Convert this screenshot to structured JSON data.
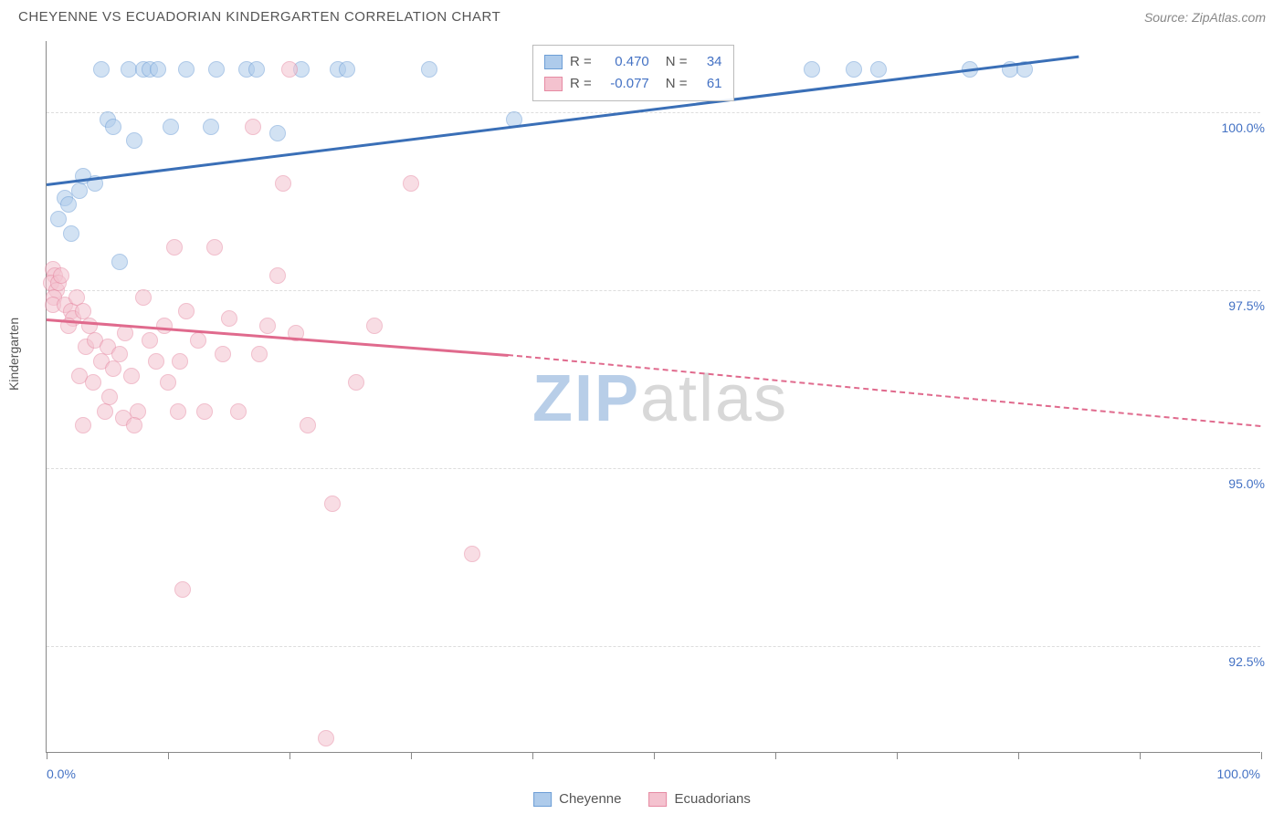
{
  "title": "CHEYENNE VS ECUADORIAN KINDERGARTEN CORRELATION CHART",
  "source": "Source: ZipAtlas.com",
  "yaxis_title": "Kindergarten",
  "watermark_zip": "ZIP",
  "watermark_atlas": "atlas",
  "chart": {
    "type": "scatter",
    "xlim": [
      0,
      100
    ],
    "ylim": [
      91.0,
      101.0
    ],
    "x_label_min": "0.0%",
    "x_label_max": "100.0%",
    "y_gridlines": [
      {
        "value": 100.0,
        "label": "100.0%"
      },
      {
        "value": 97.5,
        "label": "97.5%"
      },
      {
        "value": 95.0,
        "label": "95.0%"
      },
      {
        "value": 92.5,
        "label": "92.5%"
      }
    ],
    "x_ticks": [
      0,
      10,
      20,
      30,
      40,
      50,
      60,
      70,
      80,
      90,
      100
    ],
    "background_color": "#ffffff",
    "grid_color": "#dddddd",
    "axis_color": "#888888",
    "point_radius": 9,
    "point_opacity": 0.55,
    "series": [
      {
        "name": "Cheyenne",
        "fill": "#aecbeb",
        "stroke": "#6d9ed6",
        "trend_color": "#3a6fb7",
        "r": "0.470",
        "n": "34",
        "trend": {
          "x1": 0,
          "y1": 99.0,
          "x2": 85,
          "y2": 100.8
        },
        "points": [
          {
            "x": 1.5,
            "y": 98.8
          },
          {
            "x": 1.8,
            "y": 98.7
          },
          {
            "x": 2.7,
            "y": 98.9
          },
          {
            "x": 3.0,
            "y": 99.1
          },
          {
            "x": 1.0,
            "y": 98.5
          },
          {
            "x": 2.0,
            "y": 98.3
          },
          {
            "x": 4.0,
            "y": 99.0
          },
          {
            "x": 4.5,
            "y": 100.6
          },
          {
            "x": 5.0,
            "y": 99.9
          },
          {
            "x": 5.5,
            "y": 99.8
          },
          {
            "x": 6.8,
            "y": 100.6
          },
          {
            "x": 7.2,
            "y": 99.6
          },
          {
            "x": 8.0,
            "y": 100.6
          },
          {
            "x": 8.5,
            "y": 100.6
          },
          {
            "x": 9.2,
            "y": 100.6
          },
          {
            "x": 10.2,
            "y": 99.8
          },
          {
            "x": 11.5,
            "y": 100.6
          },
          {
            "x": 13.5,
            "y": 99.8
          },
          {
            "x": 14.0,
            "y": 100.6
          },
          {
            "x": 16.5,
            "y": 100.6
          },
          {
            "x": 17.3,
            "y": 100.6
          },
          {
            "x": 19.0,
            "y": 99.7
          },
          {
            "x": 21.0,
            "y": 100.6
          },
          {
            "x": 24.0,
            "y": 100.6
          },
          {
            "x": 24.7,
            "y": 100.6
          },
          {
            "x": 31.5,
            "y": 100.6
          },
          {
            "x": 38.5,
            "y": 99.9
          },
          {
            "x": 63.0,
            "y": 100.6
          },
          {
            "x": 66.5,
            "y": 100.6
          },
          {
            "x": 68.5,
            "y": 100.6
          },
          {
            "x": 76.0,
            "y": 100.6
          },
          {
            "x": 79.3,
            "y": 100.6
          },
          {
            "x": 80.5,
            "y": 100.6
          },
          {
            "x": 6.0,
            "y": 97.9
          }
        ]
      },
      {
        "name": "Ecuadorians",
        "fill": "#f4c2cf",
        "stroke": "#e68aa3",
        "trend_color": "#e06a8d",
        "r": "-0.077",
        "n": "61",
        "trend_solid": {
          "x1": 0,
          "y1": 97.1,
          "x2": 38,
          "y2": 96.6
        },
        "trend_dash": {
          "x1": 38,
          "y1": 96.6,
          "x2": 100,
          "y2": 95.6
        },
        "points": [
          {
            "x": 0.5,
            "y": 97.8
          },
          {
            "x": 0.7,
            "y": 97.7
          },
          {
            "x": 0.4,
            "y": 97.6
          },
          {
            "x": 0.8,
            "y": 97.5
          },
          {
            "x": 0.6,
            "y": 97.4
          },
          {
            "x": 1.0,
            "y": 97.6
          },
          {
            "x": 1.2,
            "y": 97.7
          },
          {
            "x": 0.5,
            "y": 97.3
          },
          {
            "x": 1.5,
            "y": 97.3
          },
          {
            "x": 2.0,
            "y": 97.2
          },
          {
            "x": 2.5,
            "y": 97.4
          },
          {
            "x": 2.2,
            "y": 97.1
          },
          {
            "x": 1.8,
            "y": 97.0
          },
          {
            "x": 3.0,
            "y": 97.2
          },
          {
            "x": 3.5,
            "y": 97.0
          },
          {
            "x": 2.7,
            "y": 96.3
          },
          {
            "x": 3.2,
            "y": 96.7
          },
          {
            "x": 4.0,
            "y": 96.8
          },
          {
            "x": 4.5,
            "y": 96.5
          },
          {
            "x": 3.8,
            "y": 96.2
          },
          {
            "x": 5.0,
            "y": 96.7
          },
          {
            "x": 5.5,
            "y": 96.4
          },
          {
            "x": 4.8,
            "y": 95.8
          },
          {
            "x": 6.0,
            "y": 96.6
          },
          {
            "x": 6.5,
            "y": 96.9
          },
          {
            "x": 5.2,
            "y": 96.0
          },
          {
            "x": 7.0,
            "y": 96.3
          },
          {
            "x": 7.5,
            "y": 95.8
          },
          {
            "x": 3.0,
            "y": 95.6
          },
          {
            "x": 8.0,
            "y": 97.4
          },
          {
            "x": 8.5,
            "y": 96.8
          },
          {
            "x": 6.3,
            "y": 95.7
          },
          {
            "x": 9.0,
            "y": 96.5
          },
          {
            "x": 9.7,
            "y": 97.0
          },
          {
            "x": 7.2,
            "y": 95.6
          },
          {
            "x": 10.0,
            "y": 96.2
          },
          {
            "x": 10.8,
            "y": 95.8
          },
          {
            "x": 11.5,
            "y": 97.2
          },
          {
            "x": 11.0,
            "y": 96.5
          },
          {
            "x": 11.2,
            "y": 93.3
          },
          {
            "x": 12.5,
            "y": 96.8
          },
          {
            "x": 13.0,
            "y": 95.8
          },
          {
            "x": 13.8,
            "y": 98.1
          },
          {
            "x": 14.5,
            "y": 96.6
          },
          {
            "x": 15.0,
            "y": 97.1
          },
          {
            "x": 15.8,
            "y": 95.8
          },
          {
            "x": 17.0,
            "y": 99.8
          },
          {
            "x": 17.5,
            "y": 96.6
          },
          {
            "x": 18.2,
            "y": 97.0
          },
          {
            "x": 19.0,
            "y": 97.7
          },
          {
            "x": 19.5,
            "y": 99.0
          },
          {
            "x": 20.5,
            "y": 96.9
          },
          {
            "x": 21.5,
            "y": 95.6
          },
          {
            "x": 20.0,
            "y": 100.6
          },
          {
            "x": 23.0,
            "y": 91.2
          },
          {
            "x": 23.5,
            "y": 94.5
          },
          {
            "x": 25.5,
            "y": 96.2
          },
          {
            "x": 27.0,
            "y": 97.0
          },
          {
            "x": 30.0,
            "y": 99.0
          },
          {
            "x": 35.0,
            "y": 93.8
          },
          {
            "x": 10.5,
            "y": 98.1
          }
        ]
      }
    ]
  },
  "legend_corr": {
    "r_label": "R =",
    "n_label": "N ="
  },
  "value_color": "#4472c4"
}
